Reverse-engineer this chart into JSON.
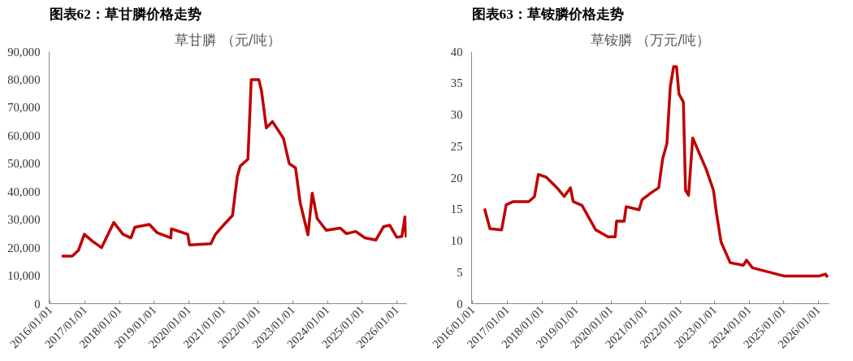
{
  "chart_data": [
    {
      "type": "line",
      "title": "图表62：草甘膦价格走势",
      "subtitle": "草甘膦 （元/吨）",
      "x": [
        "2016-04-30",
        "2016-08-20",
        "2016-10-25",
        "2016-12-25",
        "2017-03-20",
        "2017-06-25",
        "2017-09-15",
        "2017-11-01",
        "2018-02-05",
        "2018-05-01",
        "2018-06-10",
        "2018-11-10",
        "2019-01-30",
        "2019-06-25",
        "2019-07-01",
        "2019-12-20",
        "2020-01-08",
        "2020-08-20",
        "2020-10-08",
        "2021-01-15",
        "2021-04-05",
        "2021-05-25",
        "2021-06-25",
        "2021-09-15",
        "2021-10-20",
        "2022-01-08",
        "2022-02-05",
        "2022-03-28",
        "2022-06-01",
        "2022-09-25",
        "2022-11-25",
        "2023-01-30",
        "2023-03-20",
        "2023-06-10",
        "2023-07-25",
        "2023-09-15",
        "2023-12-20",
        "2024-05-15",
        "2024-07-20",
        "2024-10-25",
        "2025-01-30",
        "2025-05-25",
        "2025-08-15",
        "2025-10-20",
        "2026-01-01",
        "2026-02-25",
        "2026-03-28",
        "2026-04-10"
      ],
      "series": [
        {
          "color": "#c00000",
          "values": [
            17000,
            17000,
            19100,
            24800,
            22300,
            20000,
            25800,
            29000,
            24800,
            23500,
            27300,
            28300,
            25400,
            23500,
            26700,
            24800,
            21000,
            21400,
            24800,
            28600,
            31500,
            45200,
            49100,
            51600,
            80000,
            80000,
            76000,
            62800,
            65000,
            59000,
            50000,
            48500,
            36000,
            24600,
            39500,
            30400,
            26200,
            27000,
            25000,
            25800,
            23500,
            22700,
            27500,
            28000,
            23700,
            24000,
            31000,
            23700
          ]
        }
      ],
      "xlim": [
        "2015-12-20",
        "2026-04-15"
      ],
      "xticks": [
        {
          "value": "2016-01-01",
          "label": "2016/01/01"
        },
        {
          "value": "2017-01-01",
          "label": "2017/01/01"
        },
        {
          "value": "2018-01-01",
          "label": "2018/01/01"
        },
        {
          "value": "2019-01-01",
          "label": "2019/01/01"
        },
        {
          "value": "2020-01-01",
          "label": "2020/01/01"
        },
        {
          "value": "2021-01-01",
          "label": "2021/01/01"
        },
        {
          "value": "2022-01-01",
          "label": "2022/01/01"
        },
        {
          "value": "2023-01-01",
          "label": "2023/01/01"
        },
        {
          "value": "2024-01-01",
          "label": "2024/01/01"
        },
        {
          "value": "2025-01-01",
          "label": "2025/01/01"
        },
        {
          "value": "2026-01-01",
          "label": "2026/01/01"
        }
      ],
      "ylim": [
        0,
        90000
      ],
      "yticks": [
        {
          "value": 0,
          "label": "0"
        },
        {
          "value": 10000,
          "label": "10,000"
        },
        {
          "value": 20000,
          "label": "20,000"
        },
        {
          "value": 30000,
          "label": "30,000"
        },
        {
          "value": 40000,
          "label": "40,000"
        },
        {
          "value": 50000,
          "label": "50,000"
        },
        {
          "value": 60000,
          "label": "60,000"
        },
        {
          "value": 70000,
          "label": "70,000"
        },
        {
          "value": 80000,
          "label": "80,000"
        },
        {
          "value": 90000,
          "label": "90,000"
        }
      ],
      "grid": false
    },
    {
      "type": "line",
      "title": "图表63：草铵膦价格走势",
      "subtitle": "草铵膦 （万元/吨）",
      "x": [
        "2016-05-05",
        "2016-07-01",
        "2016-11-01",
        "2016-12-20",
        "2017-03-05",
        "2017-08-15",
        "2017-10-15",
        "2017-11-25",
        "2018-02-15",
        "2018-06-10",
        "2018-08-25",
        "2018-10-30",
        "2018-11-28",
        "2019-03-01",
        "2019-07-25",
        "2019-12-01",
        "2020-02-15",
        "2020-03-01",
        "2020-05-20",
        "2020-06-10",
        "2020-10-25",
        "2020-11-25",
        "2021-03-01",
        "2021-05-20",
        "2021-07-01",
        "2021-08-15",
        "2021-09-20",
        "2021-10-25",
        "2021-11-25",
        "2021-12-20",
        "2022-02-05",
        "2022-02-28",
        "2022-04-01",
        "2022-05-15",
        "2022-10-05",
        "2022-12-20",
        "2023-01-22",
        "2023-03-10",
        "2023-06-15",
        "2023-11-01",
        "2023-12-05",
        "2024-02-05",
        "2025-01-01",
        "2026-01-15",
        "2026-03-18",
        "2026-04-10"
      ],
      "series": [
        {
          "color": "#c00000",
          "values": [
            15.1,
            11.9,
            11.7,
            15.7,
            16.2,
            16.2,
            17.0,
            20.5,
            20.1,
            18.4,
            17.0,
            18.4,
            16.2,
            15.6,
            11.7,
            10.6,
            10.6,
            13.1,
            13.1,
            15.4,
            14.9,
            16.5,
            17.6,
            18.4,
            23.0,
            25.4,
            34.5,
            37.6,
            37.6,
            33.3,
            32.0,
            18.0,
            17.2,
            26.3,
            21.3,
            18.0,
            14.3,
            9.8,
            6.5,
            6.1,
            6.9,
            5.7,
            4.4,
            4.4,
            4.7,
            4.2
          ]
        }
      ],
      "xlim": [
        "2015-12-20",
        "2026-04-25"
      ],
      "xticks": [
        {
          "value": "2016-01-01",
          "label": "2016/01/01"
        },
        {
          "value": "2017-01-01",
          "label": "2017/01/01"
        },
        {
          "value": "2018-01-01",
          "label": "2018/01/01"
        },
        {
          "value": "2019-01-01",
          "label": "2019/01/01"
        },
        {
          "value": "2020-01-01",
          "label": "2020/01/01"
        },
        {
          "value": "2021-01-01",
          "label": "2021/01/01"
        },
        {
          "value": "2022-01-01",
          "label": "2022/01/01"
        },
        {
          "value": "2023-01-01",
          "label": "2023/01/01"
        },
        {
          "value": "2024-01-01",
          "label": "2024/01/01"
        },
        {
          "value": "2025-01-01",
          "label": "2025/01/01"
        },
        {
          "value": "2026-01-01",
          "label": "2026/01/01"
        }
      ],
      "ylim": [
        0,
        40
      ],
      "yticks": [
        0,
        5,
        10,
        15,
        20,
        25,
        30,
        35,
        40
      ],
      "grid": false
    }
  ]
}
